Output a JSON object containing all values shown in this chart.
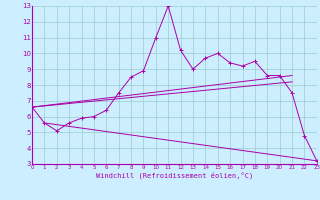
{
  "xlabel": "Windchill (Refroidissement éolien,°C)",
  "bg_color": "#cceeff",
  "line_color": "#aa00aa",
  "grid_color": "#99cccc",
  "xmin": 0,
  "xmax": 23,
  "ymin": 3,
  "ymax": 13,
  "main_line": {
    "x": [
      0,
      1,
      2,
      3,
      4,
      5,
      6,
      7,
      8,
      9,
      10,
      11,
      12,
      13,
      14,
      15,
      16,
      17,
      18,
      19,
      20,
      21,
      22,
      23
    ],
    "y": [
      6.6,
      5.6,
      5.1,
      5.6,
      5.9,
      6.0,
      6.4,
      7.5,
      8.5,
      8.9,
      11.0,
      13.0,
      10.2,
      9.0,
      9.7,
      10.0,
      9.4,
      9.2,
      9.5,
      8.6,
      8.6,
      7.5,
      4.8,
      3.2
    ]
  },
  "straight_lines": [
    {
      "x": [
        1,
        23
      ],
      "y": [
        5.6,
        3.2
      ]
    },
    {
      "x": [
        0,
        21
      ],
      "y": [
        6.6,
        8.6
      ]
    },
    {
      "x": [
        0,
        21
      ],
      "y": [
        6.6,
        8.2
      ]
    }
  ],
  "xtick_fontsize": 4.0,
  "ytick_fontsize": 5.0,
  "xlabel_fontsize": 5.0
}
